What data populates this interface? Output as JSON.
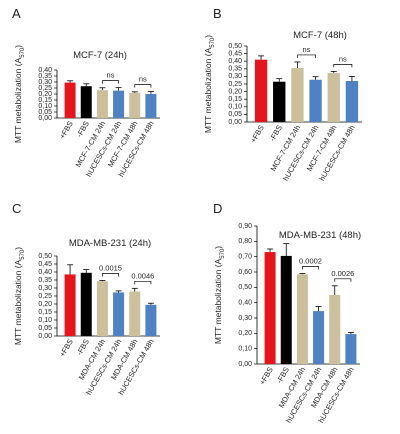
{
  "chart_data": [
    {
      "type": "bar",
      "panel_label": "A",
      "title": "MCF-7 (24h)",
      "ylabel": [
        "MTT metabolization (A",
        "570",
        ")"
      ],
      "categories": [
        "+FBS",
        "-FBS",
        "MCF-7-CM 24h",
        "hUCESCs-CM 24h",
        "MCF-7-CM 48h",
        "hUCESCs-CM 48h"
      ],
      "values": [
        0.295,
        0.265,
        0.232,
        0.228,
        0.21,
        0.2
      ],
      "errors": [
        0.015,
        0.02,
        0.02,
        0.025,
        0.008,
        0.02
      ],
      "colors": [
        "#e8141c",
        "#000000",
        "#cbbf9c",
        "#4f82c4",
        "#cbbf9c",
        "#4f82c4"
      ],
      "ylim": [
        0,
        0.4
      ],
      "yticks": [
        {
          "value": 0,
          "label": "0,00"
        },
        {
          "value": 0.05,
          "label": "0,05"
        },
        {
          "value": 0.1,
          "label": "0,10"
        },
        {
          "value": 0.15,
          "label": "0,15"
        },
        {
          "value": 0.2,
          "label": "0,20"
        },
        {
          "value": 0.25,
          "label": "0,25"
        },
        {
          "value": 0.3,
          "label": "0,30"
        },
        {
          "value": 0.35,
          "label": "0,35"
        },
        {
          "value": 0.4,
          "label": "0,40"
        }
      ],
      "annotations": [
        "ns",
        "ns"
      ]
    },
    {
      "type": "bar",
      "panel_label": "B",
      "title": "MCF-7 (48h)",
      "ylabel": [
        "MTT metabolization (A",
        "570",
        ")"
      ],
      "categories": [
        "+FBS",
        "-FBS",
        "MCF-7-CM 24h",
        "hUCESCs-CM 24h",
        "MCF-7-CM 48h",
        "hUCESCs-CM 48h"
      ],
      "values": [
        0.41,
        0.265,
        0.355,
        0.278,
        0.323,
        0.27
      ],
      "errors": [
        0.025,
        0.02,
        0.04,
        0.02,
        0.01,
        0.03
      ],
      "colors": [
        "#e8141c",
        "#000000",
        "#cbbf9c",
        "#4f82c4",
        "#cbbf9c",
        "#4f82c4"
      ],
      "ylim": [
        0,
        0.5
      ],
      "yticks": [
        {
          "value": 0,
          "label": "0,00"
        },
        {
          "value": 0.05,
          "label": "0,05"
        },
        {
          "value": 0.1,
          "label": "0,10"
        },
        {
          "value": 0.15,
          "label": "0,15"
        },
        {
          "value": 0.2,
          "label": "0,20"
        },
        {
          "value": 0.25,
          "label": "0,25"
        },
        {
          "value": 0.3,
          "label": "0,30"
        },
        {
          "value": 0.35,
          "label": "0,35"
        },
        {
          "value": 0.4,
          "label": "0,40"
        },
        {
          "value": 0.45,
          "label": "0,45"
        },
        {
          "value": 0.5,
          "label": "0,50"
        }
      ],
      "annotations": [
        "ns",
        "ns"
      ]
    },
    {
      "type": "bar",
      "panel_label": "C",
      "title": "MDA-MB-231 (24h)",
      "ylabel": [
        "MTT metabolization (A",
        "570",
        ")"
      ],
      "categories": [
        "+FBS",
        "-FBS",
        "MDA-CM 24h",
        "hUCESCs-CM 24h",
        "MDA-CM 48h",
        "hUCESCs-CM 48h"
      ],
      "values": [
        0.385,
        0.395,
        0.342,
        0.272,
        0.278,
        0.195
      ],
      "errors": [
        0.06,
        0.02,
        0.005,
        0.01,
        0.02,
        0.01
      ],
      "colors": [
        "#e8141c",
        "#000000",
        "#cbbf9c",
        "#4f82c4",
        "#cbbf9c",
        "#4f82c4"
      ],
      "ylim": [
        0,
        0.5
      ],
      "yticks": [
        {
          "value": 0,
          "label": "0,00"
        },
        {
          "value": 0.05,
          "label": "0,05"
        },
        {
          "value": 0.1,
          "label": "0,10"
        },
        {
          "value": 0.15,
          "label": "0,15"
        },
        {
          "value": 0.2,
          "label": "0,20"
        },
        {
          "value": 0.25,
          "label": "0,25"
        },
        {
          "value": 0.3,
          "label": "0,30"
        },
        {
          "value": 0.35,
          "label": "0,35"
        },
        {
          "value": 0.4,
          "label": "0,40"
        },
        {
          "value": 0.45,
          "label": "0,45"
        },
        {
          "value": 0.5,
          "label": "0,50"
        }
      ],
      "annotations": [
        "0.0015",
        "0.0046"
      ]
    },
    {
      "type": "bar",
      "panel_label": "D",
      "title": "MDA-MB-231 (48h)",
      "ylabel": [
        "MTT metabolization (A",
        "570",
        ")"
      ],
      "categories": [
        "+FBS",
        "-FBS",
        "MDA-CM 24h",
        "hUCESCs-CM 24h",
        "MDA-CM 48h",
        "hUCESCs-CM 48h"
      ],
      "values": [
        0.73,
        0.705,
        0.585,
        0.345,
        0.45,
        0.195
      ],
      "errors": [
        0.02,
        0.08,
        0.005,
        0.03,
        0.06,
        0.01
      ],
      "colors": [
        "#e8141c",
        "#000000",
        "#cbbf9c",
        "#4f82c4",
        "#cbbf9c",
        "#4f82c4"
      ],
      "ylim": [
        0,
        0.9
      ],
      "yticks": [
        {
          "value": 0,
          "label": "0,00"
        },
        {
          "value": 0.1,
          "label": "0,10"
        },
        {
          "value": 0.2,
          "label": "0,20"
        },
        {
          "value": 0.3,
          "label": "0,30"
        },
        {
          "value": 0.4,
          "label": "0,40"
        },
        {
          "value": 0.5,
          "label": "0,50"
        },
        {
          "value": 0.6,
          "label": "0,60"
        },
        {
          "value": 0.7,
          "label": "0,70"
        },
        {
          "value": 0.8,
          "label": "0,80"
        },
        {
          "value": 0.9,
          "label": "0,90"
        }
      ],
      "annotations": [
        "0.0002",
        "0.0026"
      ]
    }
  ]
}
